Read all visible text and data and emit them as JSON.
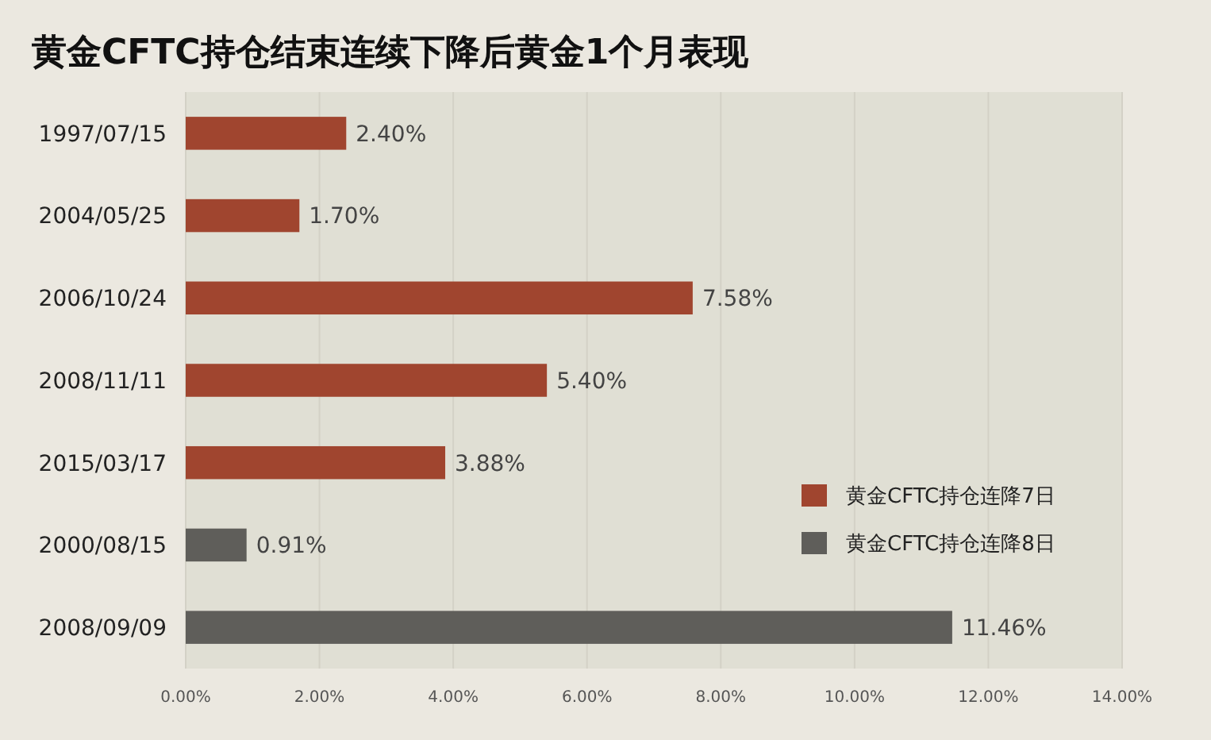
{
  "chart_data": {
    "type": "bar",
    "orientation": "horizontal",
    "title": "黄金CFTC持仓结束连续下降后黄金1个月表现",
    "categories": [
      "1997/07/15",
      "2004/05/25",
      "2006/10/24",
      "2008/11/11",
      "2015/03/17",
      "2000/08/15",
      "2008/09/09"
    ],
    "series": [
      {
        "name": "黄金CFTC持仓连降7日",
        "color": "#a0452f",
        "values": [
          2.4,
          1.7,
          7.58,
          5.4,
          3.88,
          null,
          null
        ],
        "value_labels": [
          "2.40%",
          "1.70%",
          "7.58%",
          "5.40%",
          "3.88%",
          null,
          null
        ]
      },
      {
        "name": "黄金CFTC持仓连降8日",
        "color": "#5f5e5a",
        "values": [
          null,
          null,
          null,
          null,
          null,
          0.91,
          11.46
        ],
        "value_labels": [
          null,
          null,
          null,
          null,
          null,
          "0.91%",
          "11.46%"
        ]
      }
    ],
    "xlim": [
      0,
      14
    ],
    "xticks": [
      {
        "value": 0,
        "label": "0.00%"
      },
      {
        "value": 2,
        "label": "2.00%"
      },
      {
        "value": 4,
        "label": "4.00%"
      },
      {
        "value": 6,
        "label": "6.00%"
      },
      {
        "value": 8,
        "label": "8.00%"
      },
      {
        "value": 10,
        "label": "10.00%"
      },
      {
        "value": 12,
        "label": "12.00%"
      },
      {
        "value": 14,
        "label": "14.00%"
      }
    ],
    "grid": "x",
    "legend": "right"
  }
}
